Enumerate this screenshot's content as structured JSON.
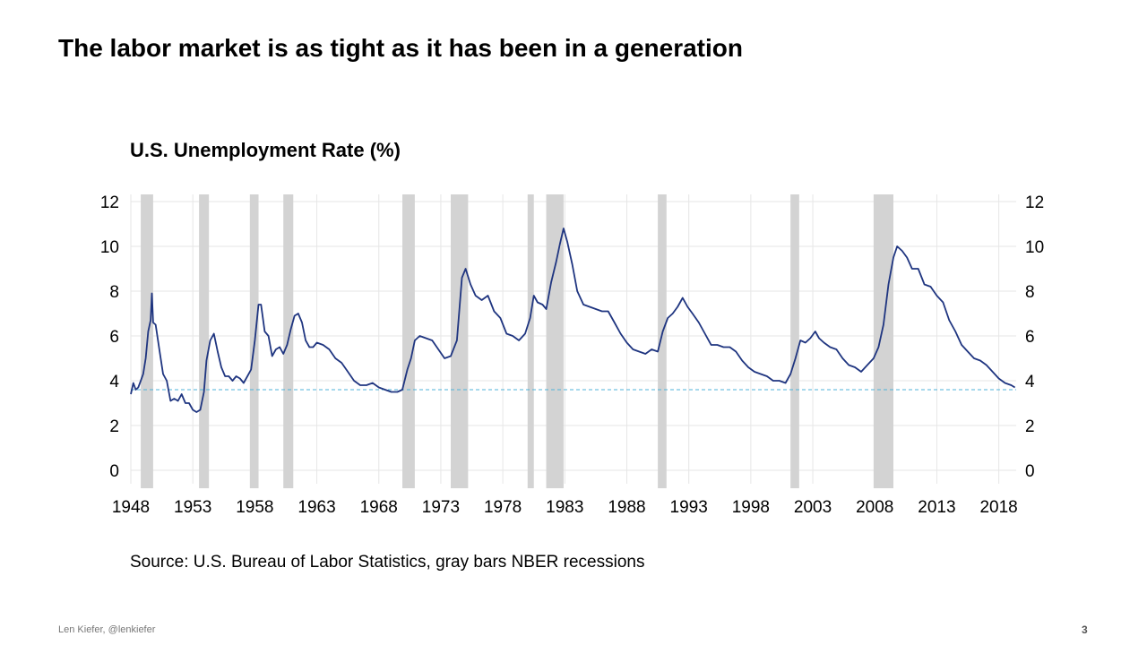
{
  "slide": {
    "title": "The labor market is as tight as it has been in a generation",
    "footer_left": "Len Kiefer, @lenkiefer",
    "page_number": "3"
  },
  "chart_data": {
    "type": "line",
    "title": "U.S. Unemployment Rate (%)",
    "source": "Source: U.S. Bureau of Labor Statistics, gray bars NBER recessions",
    "xlabel": "",
    "ylabel": "",
    "xlim": [
      1948,
      2019.4
    ],
    "ylim": [
      0,
      12
    ],
    "x_ticks": [
      1948,
      1953,
      1958,
      1963,
      1968,
      1973,
      1978,
      1983,
      1988,
      1993,
      1998,
      2003,
      2008,
      2013,
      2018
    ],
    "y_ticks": [
      0,
      2,
      4,
      6,
      8,
      10,
      12
    ],
    "grid": true,
    "legend": "none",
    "line_color": "#1f3580",
    "recession_color": "#d3d3d3",
    "reference_color": "#4fb3d9",
    "reference_line": 3.6,
    "recessions": [
      [
        1948.8,
        1949.8
      ],
      [
        1953.5,
        1954.3
      ],
      [
        1957.6,
        1958.3
      ],
      [
        1960.3,
        1961.1
      ],
      [
        1969.9,
        1970.9
      ],
      [
        1973.8,
        1975.2
      ],
      [
        1980.0,
        1980.5
      ],
      [
        1981.5,
        1982.9
      ],
      [
        1990.5,
        1991.2
      ],
      [
        2001.2,
        2001.9
      ],
      [
        2007.9,
        2009.5
      ]
    ],
    "series": [
      {
        "x": [
          1948.0,
          1948.2,
          1948.4,
          1948.6,
          1948.8,
          1949.0,
          1949.2,
          1949.4,
          1949.6,
          1949.7,
          1949.8,
          1950.0,
          1950.3,
          1950.6,
          1950.9,
          1951.2,
          1951.5,
          1951.8,
          1952.1,
          1952.4,
          1952.7,
          1953.0,
          1953.3,
          1953.6,
          1953.9,
          1954.1,
          1954.4,
          1954.7,
          1955.0,
          1955.3,
          1955.6,
          1955.9,
          1956.2,
          1956.5,
          1956.8,
          1957.1,
          1957.4,
          1957.7,
          1958.0,
          1958.3,
          1958.5,
          1958.8,
          1959.1,
          1959.4,
          1959.7,
          1960.0,
          1960.3,
          1960.6,
          1960.9,
          1961.2,
          1961.5,
          1961.8,
          1962.1,
          1962.4,
          1962.7,
          1963.0,
          1963.5,
          1964.0,
          1964.5,
          1965.0,
          1965.5,
          1966.0,
          1966.5,
          1967.0,
          1967.5,
          1968.0,
          1968.5,
          1969.0,
          1969.5,
          1969.9,
          1970.3,
          1970.6,
          1970.9,
          1971.3,
          1971.8,
          1972.3,
          1972.8,
          1973.3,
          1973.8,
          1974.3,
          1974.7,
          1975.0,
          1975.4,
          1975.8,
          1976.3,
          1976.8,
          1977.3,
          1977.8,
          1978.3,
          1978.8,
          1979.3,
          1979.8,
          1980.2,
          1980.5,
          1980.8,
          1981.2,
          1981.5,
          1981.9,
          1982.3,
          1982.6,
          1982.9,
          1983.2,
          1983.6,
          1984.0,
          1984.5,
          1985.0,
          1985.5,
          1986.0,
          1986.5,
          1987.0,
          1987.5,
          1988.0,
          1988.5,
          1989.0,
          1989.5,
          1990.0,
          1990.5,
          1990.9,
          1991.3,
          1991.7,
          1992.1,
          1992.5,
          1992.9,
          1993.3,
          1993.8,
          1994.3,
          1994.8,
          1995.3,
          1995.8,
          1996.3,
          1996.8,
          1997.3,
          1997.8,
          1998.3,
          1998.8,
          1999.3,
          1999.8,
          2000.3,
          2000.8,
          2001.2,
          2001.6,
          2002.0,
          2002.4,
          2002.8,
          2003.2,
          2003.5,
          2003.9,
          2004.4,
          2004.9,
          2005.4,
          2005.9,
          2006.4,
          2006.9,
          2007.4,
          2007.9,
          2008.3,
          2008.7,
          2009.1,
          2009.5,
          2009.8,
          2010.2,
          2010.6,
          2011.0,
          2011.5,
          2012.0,
          2012.5,
          2013.0,
          2013.5,
          2014.0,
          2014.5,
          2015.0,
          2015.5,
          2016.0,
          2016.5,
          2017.0,
          2017.5,
          2018.0,
          2018.5,
          2019.0,
          2019.3
        ],
        "values": [
          3.4,
          3.9,
          3.6,
          3.7,
          4.0,
          4.3,
          5.0,
          6.2,
          6.7,
          7.9,
          6.6,
          6.5,
          5.4,
          4.3,
          4.0,
          3.1,
          3.2,
          3.1,
          3.4,
          3.0,
          3.0,
          2.7,
          2.6,
          2.7,
          3.5,
          4.9,
          5.8,
          6.1,
          5.3,
          4.6,
          4.2,
          4.2,
          4.0,
          4.2,
          4.1,
          3.9,
          4.2,
          4.5,
          5.8,
          7.4,
          7.4,
          6.2,
          6.0,
          5.1,
          5.4,
          5.5,
          5.2,
          5.6,
          6.3,
          6.9,
          7.0,
          6.6,
          5.8,
          5.5,
          5.5,
          5.7,
          5.6,
          5.4,
          5.0,
          4.8,
          4.4,
          4.0,
          3.8,
          3.8,
          3.9,
          3.7,
          3.6,
          3.5,
          3.5,
          3.6,
          4.5,
          5.0,
          5.8,
          6.0,
          5.9,
          5.8,
          5.4,
          5.0,
          5.1,
          5.8,
          8.6,
          9.0,
          8.3,
          7.8,
          7.6,
          7.8,
          7.1,
          6.8,
          6.1,
          6.0,
          5.8,
          6.1,
          6.8,
          7.8,
          7.5,
          7.4,
          7.2,
          8.4,
          9.3,
          10.1,
          10.8,
          10.2,
          9.2,
          8.0,
          7.4,
          7.3,
          7.2,
          7.1,
          7.1,
          6.6,
          6.1,
          5.7,
          5.4,
          5.3,
          5.2,
          5.4,
          5.3,
          6.2,
          6.8,
          7.0,
          7.3,
          7.7,
          7.3,
          7.0,
          6.6,
          6.1,
          5.6,
          5.6,
          5.5,
          5.5,
          5.3,
          4.9,
          4.6,
          4.4,
          4.3,
          4.2,
          4.0,
          4.0,
          3.9,
          4.3,
          5.0,
          5.8,
          5.7,
          5.9,
          6.2,
          5.9,
          5.7,
          5.5,
          5.4,
          5.0,
          4.7,
          4.6,
          4.4,
          4.7,
          5.0,
          5.5,
          6.5,
          8.3,
          9.5,
          10.0,
          9.8,
          9.5,
          9.0,
          9.0,
          8.3,
          8.2,
          7.8,
          7.5,
          6.7,
          6.2,
          5.6,
          5.3,
          5.0,
          4.9,
          4.7,
          4.4,
          4.1,
          3.9,
          3.8,
          3.7
        ]
      }
    ]
  }
}
